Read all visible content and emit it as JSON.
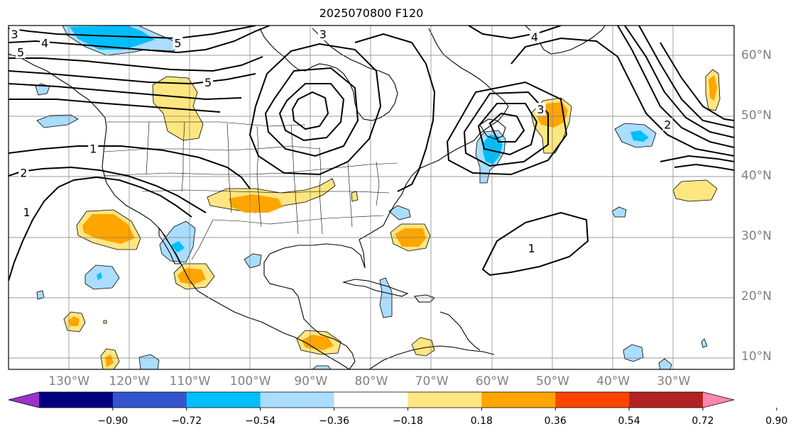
{
  "title": "2025070800 F120",
  "lat_labels": [
    {
      "text": "60°N",
      "lat": 60
    },
    {
      "text": "50°N",
      "lat": 50
    },
    {
      "text": "40°N",
      "lat": 40
    },
    {
      "text": "30°N",
      "lat": 30
    },
    {
      "text": "20°N",
      "lat": 20
    },
    {
      "text": "10°N",
      "lat": 10
    }
  ],
  "lon_labels": [
    {
      "text": "130°W",
      "lon": -130
    },
    {
      "text": "120°W",
      "lon": -120
    },
    {
      "text": "110°W",
      "lon": -110
    },
    {
      "text": "100°W",
      "lon": -100
    },
    {
      "text": "90°W",
      "lon": -90
    },
    {
      "text": "80°W",
      "lon": -80
    },
    {
      "text": "70°W",
      "lon": -70
    },
    {
      "text": "60°W",
      "lon": -60
    },
    {
      "text": "50°W",
      "lon": -50
    },
    {
      "text": "40°W",
      "lon": -40
    },
    {
      "text": "30°W",
      "lon": -30
    }
  ],
  "colorbar": {
    "colors": [
      "#9933cc",
      "#000080",
      "#3355cc",
      "#00bfff",
      "#aaddff",
      "#ffffff",
      "#ffe680",
      "#ffa500",
      "#ff4500",
      "#b22222",
      "#ff88aa"
    ],
    "ticks": [
      "−0.90",
      "−0.72",
      "−0.54",
      "−0.36",
      "−0.18",
      "0.18",
      "0.36",
      "0.54",
      "0.72",
      "0.90"
    ]
  },
  "contour_labels": [
    {
      "text": "4",
      "lon": -134,
      "lat": 62
    },
    {
      "text": "5",
      "lon": -138,
      "lat": 60.5
    },
    {
      "text": "5",
      "lon": -112,
      "lat": 62
    },
    {
      "text": "5",
      "lon": -107,
      "lat": 55.5
    },
    {
      "text": "1",
      "lon": -126,
      "lat": 44.5
    },
    {
      "text": "2",
      "lon": -137.5,
      "lat": 40.5
    },
    {
      "text": "1",
      "lon": -137,
      "lat": 34
    },
    {
      "text": "3",
      "lon": -52,
      "lat": 51
    },
    {
      "text": "1",
      "lon": -53.5,
      "lat": 28
    },
    {
      "text": "2",
      "lon": -31,
      "lat": 48.5
    },
    {
      "text": "3",
      "lon": -139,
      "lat": 63.5
    },
    {
      "text": "4",
      "lon": -53,
      "lat": 63
    },
    {
      "text": "3",
      "lon": -88,
      "lat": 63.5
    }
  ]
}
